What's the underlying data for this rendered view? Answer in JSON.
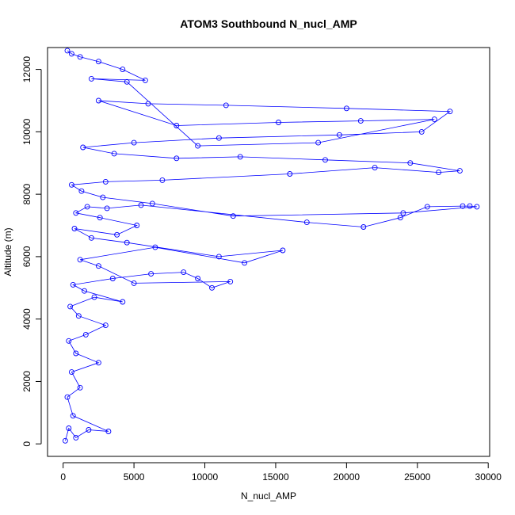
{
  "chart_data": {
    "type": "scatter",
    "title": "ATOM3 Southbound N_nucl_AMP",
    "xlabel": "N_nucl_AMP",
    "ylabel": "Altitude (m)",
    "xlim": [
      -1100,
      30100
    ],
    "ylim": [
      -400,
      12700
    ],
    "xticks": [
      0,
      5000,
      10000,
      15000,
      20000,
      25000,
      30000
    ],
    "yticks": [
      0,
      2000,
      4000,
      6000,
      8000,
      10000,
      12000
    ],
    "grid": false,
    "legend": "none",
    "color": "#0000ff",
    "line_style": "points connected by lines",
    "marker": "open circle",
    "series": [
      {
        "x": [
          150,
          400,
          900,
          1800,
          3200,
          700,
          300,
          1200,
          600,
          2500,
          900,
          400,
          1600,
          3000,
          1100,
          500,
          2200,
          4200,
          1500,
          700,
          3500,
          6200,
          8500,
          9500,
          10500,
          11800,
          5000,
          2500,
          1200,
          6500,
          12800,
          15500,
          11000,
          4500,
          2000,
          800,
          3800,
          5200,
          2600,
          900,
          1700,
          3100,
          5500,
          17200,
          21200,
          23800,
          25700,
          28200,
          28700,
          29200,
          24000,
          12000,
          6300,
          2800,
          1300,
          600,
          3000,
          7000,
          16000,
          22000,
          26500,
          28000,
          24500,
          18500,
          12500,
          8000,
          3600,
          1400,
          5000,
          11000,
          19500,
          25300,
          27300,
          20000,
          11500,
          6000,
          2500,
          8000,
          15200,
          21000,
          26200,
          18000,
          9500,
          4500,
          2000,
          5800,
          4200,
          2500,
          1200,
          600,
          300
        ],
        "y": [
          100,
          500,
          200,
          450,
          400,
          900,
          1500,
          1800,
          2300,
          2600,
          2900,
          3300,
          3500,
          3800,
          4100,
          4400,
          4700,
          4550,
          4900,
          5100,
          5300,
          5450,
          5500,
          5300,
          5000,
          5200,
          5150,
          5700,
          5900,
          6300,
          5800,
          6200,
          6000,
          6450,
          6600,
          6900,
          6700,
          7000,
          7250,
          7400,
          7600,
          7550,
          7650,
          7100,
          6950,
          7250,
          7600,
          7620,
          7620,
          7600,
          7400,
          7300,
          7700,
          7900,
          8100,
          8300,
          8400,
          8450,
          8650,
          8850,
          8700,
          8750,
          9000,
          9100,
          9200,
          9150,
          9300,
          9500,
          9650,
          9800,
          9900,
          10000,
          10650,
          10750,
          10850,
          10900,
          11000,
          10200,
          10300,
          10350,
          10400,
          9650,
          9550,
          11600,
          11700,
          11650,
          12000,
          12250,
          12400,
          12500,
          12600
        ]
      }
    ]
  }
}
